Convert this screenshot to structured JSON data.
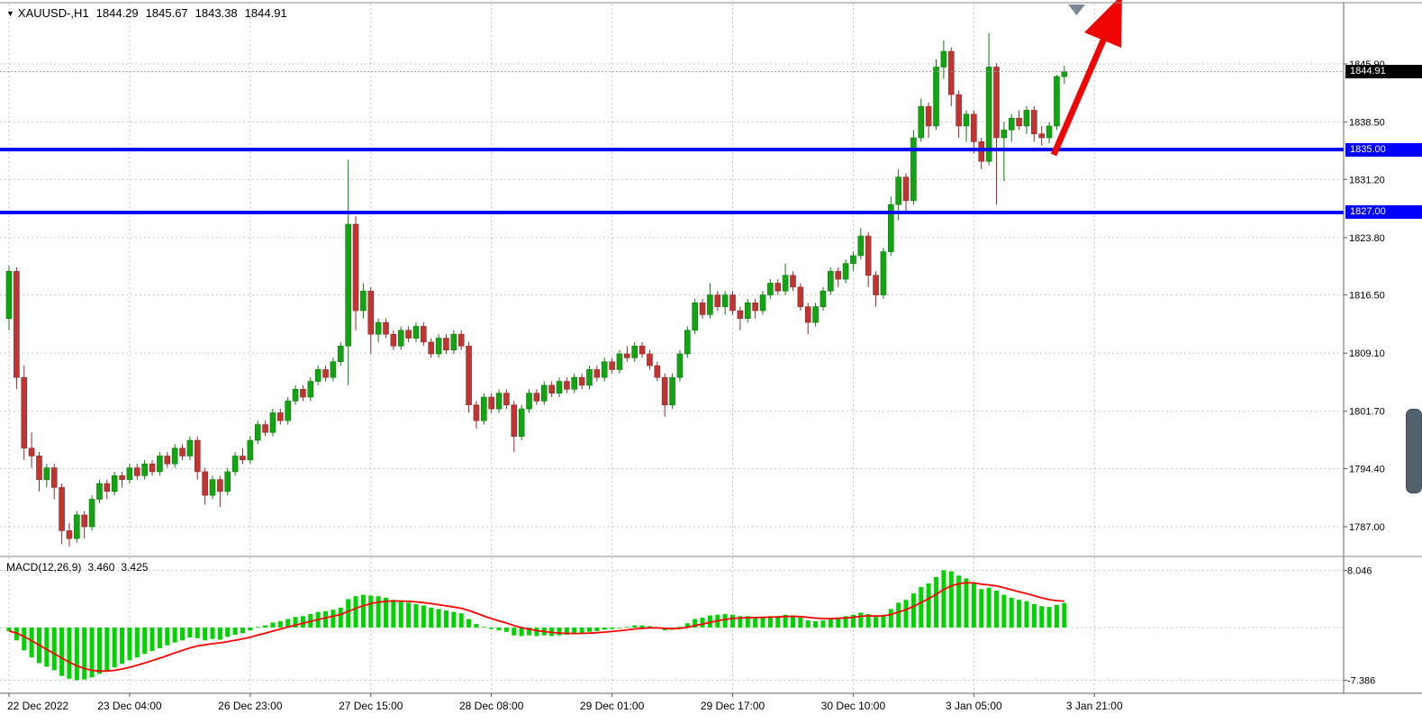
{
  "header": {
    "symbol_period": "XAUUSD-,H1",
    "open": "1844.29",
    "high": "1845.67",
    "low": "1843.38",
    "close": "1844.91"
  },
  "icons": {
    "dropdown": "▼"
  },
  "macd_display": {
    "label": "MACD(12,26,9)",
    "main": "3.460",
    "signal": "3.425"
  },
  "tags": {
    "current": "1844.91",
    "level1": "1835.00",
    "level2": "1827.00"
  },
  "colors": {
    "up": "#12A412",
    "up_wick": "#0B7A0B",
    "down": "#C13434",
    "down_wick": "#8F2B2B",
    "grid": "#C6C6C6",
    "level": "#0000FF",
    "macd_hist": "#00D300",
    "macd_signal": "#FF0000",
    "arrow": "#F00505",
    "tag_current_bg": "#000000",
    "tag_level_bg": "#0000FF",
    "marker": "#7B8794"
  },
  "chart_data": {
    "type": "candlestick",
    "symbol": "XAUUSD-",
    "timeframe": "H1",
    "current_ohlc": {
      "open": 1844.29,
      "high": 1845.67,
      "low": 1843.38,
      "close": 1844.91
    },
    "price_axis": {
      "ticks": [
        1845.9,
        1838.5,
        1831.2,
        1823.8,
        1816.5,
        1809.1,
        1801.7,
        1794.4,
        1787.0
      ],
      "tick_labels": [
        "1845.90",
        "1838.50",
        "1831.20",
        "1823.80",
        "1816.50",
        "1809.10",
        "1801.70",
        "1794.40",
        "1787.00"
      ]
    },
    "levels": [
      1835.0,
      1827.0
    ],
    "time_axis": {
      "labels": [
        "22 Dec 2022",
        "23 Dec 04:00",
        "26 Dec 23:00",
        "27 Dec 15:00",
        "28 Dec 08:00",
        "29 Dec 01:00",
        "29 Dec 17:00",
        "30 Dec 10:00",
        "3 Jan 05:00",
        "3 Jan 21:00"
      ],
      "bar_indices": [
        0,
        16,
        32,
        48,
        64,
        80,
        96,
        112,
        128,
        144
      ]
    },
    "ohlc": [
      [
        1813.5,
        1820.2,
        1812.0,
        1819.5
      ],
      [
        1819.5,
        1820.0,
        1804.5,
        1806.0
      ],
      [
        1806.0,
        1807.5,
        1795.5,
        1797.0
      ],
      [
        1797.0,
        1799.0,
        1794.5,
        1796.0
      ],
      [
        1796.0,
        1796.5,
        1791.5,
        1793.0
      ],
      [
        1793.0,
        1795.0,
        1792.0,
        1794.5
      ],
      [
        1794.5,
        1795.0,
        1790.5,
        1792.0
      ],
      [
        1792.0,
        1792.5,
        1784.8,
        1786.5
      ],
      [
        1786.5,
        1787.5,
        1784.5,
        1785.5
      ],
      [
        1785.5,
        1789.0,
        1785.0,
        1788.5
      ],
      [
        1788.5,
        1789.0,
        1785.5,
        1787.0
      ],
      [
        1787.0,
        1791.0,
        1786.5,
        1790.5
      ],
      [
        1790.5,
        1793.0,
        1790.0,
        1792.5
      ],
      [
        1792.5,
        1793.0,
        1790.5,
        1791.5
      ],
      [
        1791.5,
        1794.0,
        1791.0,
        1793.5
      ],
      [
        1793.5,
        1794.0,
        1792.0,
        1793.0
      ],
      [
        1793.0,
        1795.0,
        1792.5,
        1794.5
      ],
      [
        1794.5,
        1795.0,
        1793.0,
        1793.5
      ],
      [
        1793.5,
        1795.5,
        1793.0,
        1795.0
      ],
      [
        1795.0,
        1795.5,
        1793.5,
        1794.0
      ],
      [
        1794.0,
        1796.5,
        1793.5,
        1796.0
      ],
      [
        1796.0,
        1796.5,
        1794.5,
        1795.0
      ],
      [
        1795.0,
        1797.5,
        1794.5,
        1797.0
      ],
      [
        1797.0,
        1797.5,
        1795.5,
        1796.0
      ],
      [
        1796.0,
        1798.5,
        1795.5,
        1798.0
      ],
      [
        1798.0,
        1798.5,
        1793.0,
        1794.0
      ],
      [
        1794.0,
        1794.5,
        1789.8,
        1791.0
      ],
      [
        1791.0,
        1793.5,
        1790.5,
        1793.0
      ],
      [
        1793.0,
        1793.5,
        1789.5,
        1791.5
      ],
      [
        1791.5,
        1794.5,
        1791.0,
        1794.0
      ],
      [
        1794.0,
        1796.5,
        1793.5,
        1796.0
      ],
      [
        1796.0,
        1797.0,
        1795.0,
        1795.5
      ],
      [
        1795.5,
        1798.5,
        1795.0,
        1798.0
      ],
      [
        1798.0,
        1800.5,
        1797.5,
        1800.0
      ],
      [
        1800.0,
        1800.5,
        1798.5,
        1799.0
      ],
      [
        1799.0,
        1802.0,
        1798.5,
        1801.5
      ],
      [
        1801.5,
        1802.0,
        1800.0,
        1800.5
      ],
      [
        1800.5,
        1803.5,
        1800.0,
        1803.0
      ],
      [
        1803.0,
        1805.0,
        1802.5,
        1804.5
      ],
      [
        1804.5,
        1805.0,
        1803.0,
        1803.5
      ],
      [
        1803.5,
        1806.0,
        1803.0,
        1805.5
      ],
      [
        1805.5,
        1807.5,
        1805.0,
        1807.0
      ],
      [
        1807.0,
        1807.5,
        1805.5,
        1806.0
      ],
      [
        1806.0,
        1808.5,
        1805.5,
        1808.0
      ],
      [
        1808.0,
        1810.5,
        1807.5,
        1810.0
      ],
      [
        1810.0,
        1833.7,
        1805.0,
        1825.5
      ],
      [
        1825.5,
        1826.5,
        1812.0,
        1814.5
      ],
      [
        1814.5,
        1818.0,
        1813.5,
        1817.0
      ],
      [
        1817.0,
        1817.5,
        1809.0,
        1811.5
      ],
      [
        1811.5,
        1813.5,
        1810.5,
        1813.0
      ],
      [
        1813.0,
        1813.5,
        1811.0,
        1811.5
      ],
      [
        1811.5,
        1812.0,
        1809.5,
        1810.0
      ],
      [
        1810.0,
        1812.5,
        1809.5,
        1812.0
      ],
      [
        1812.0,
        1812.5,
        1810.5,
        1811.0
      ],
      [
        1811.0,
        1813.0,
        1810.5,
        1812.5
      ],
      [
        1812.5,
        1813.0,
        1810.0,
        1810.5
      ],
      [
        1810.5,
        1811.0,
        1808.5,
        1809.0
      ],
      [
        1809.0,
        1811.5,
        1808.5,
        1811.0
      ],
      [
        1811.0,
        1811.5,
        1809.0,
        1809.5
      ],
      [
        1809.5,
        1812.0,
        1809.0,
        1811.5
      ],
      [
        1811.5,
        1812.0,
        1809.5,
        1810.0
      ],
      [
        1810.0,
        1810.5,
        1801.5,
        1802.5
      ],
      [
        1802.5,
        1803.0,
        1799.5,
        1800.5
      ],
      [
        1800.5,
        1804.0,
        1800.0,
        1803.5
      ],
      [
        1803.5,
        1804.0,
        1801.5,
        1802.0
      ],
      [
        1802.0,
        1804.5,
        1801.5,
        1804.0
      ],
      [
        1804.0,
        1804.5,
        1802.0,
        1802.5
      ],
      [
        1802.5,
        1803.0,
        1796.5,
        1798.5
      ],
      [
        1798.5,
        1802.5,
        1798.0,
        1802.0
      ],
      [
        1802.0,
        1804.5,
        1801.5,
        1804.0
      ],
      [
        1804.0,
        1804.5,
        1802.5,
        1803.0
      ],
      [
        1803.0,
        1805.5,
        1802.5,
        1805.0
      ],
      [
        1805.0,
        1805.5,
        1803.5,
        1804.0
      ],
      [
        1804.0,
        1806.0,
        1803.5,
        1805.5
      ],
      [
        1805.5,
        1806.0,
        1804.0,
        1804.5
      ],
      [
        1804.5,
        1806.5,
        1804.0,
        1806.0
      ],
      [
        1806.0,
        1806.5,
        1804.5,
        1805.0
      ],
      [
        1805.0,
        1807.5,
        1804.5,
        1807.0
      ],
      [
        1807.0,
        1807.5,
        1805.5,
        1806.0
      ],
      [
        1806.0,
        1808.5,
        1805.5,
        1808.0
      ],
      [
        1808.0,
        1808.5,
        1806.5,
        1807.0
      ],
      [
        1807.0,
        1809.5,
        1806.5,
        1809.0
      ],
      [
        1809.0,
        1810.0,
        1808.0,
        1808.5
      ],
      [
        1808.5,
        1810.5,
        1808.0,
        1810.0
      ],
      [
        1810.0,
        1810.5,
        1808.5,
        1809.0
      ],
      [
        1809.0,
        1809.5,
        1807.0,
        1807.5
      ],
      [
        1807.5,
        1808.0,
        1805.5,
        1806.0
      ],
      [
        1806.0,
        1806.5,
        1801.0,
        1802.5
      ],
      [
        1802.5,
        1806.5,
        1802.0,
        1806.0
      ],
      [
        1806.0,
        1809.5,
        1805.5,
        1809.0
      ],
      [
        1809.0,
        1812.5,
        1808.5,
        1812.0
      ],
      [
        1812.0,
        1816.0,
        1811.5,
        1815.5
      ],
      [
        1815.5,
        1816.0,
        1813.5,
        1814.0
      ],
      [
        1814.0,
        1818.0,
        1813.5,
        1816.5
      ],
      [
        1816.5,
        1817.0,
        1814.5,
        1815.0
      ],
      [
        1815.0,
        1817.0,
        1814.0,
        1816.5
      ],
      [
        1816.5,
        1817.0,
        1814.0,
        1814.5
      ],
      [
        1814.5,
        1815.0,
        1812.0,
        1813.5
      ],
      [
        1813.5,
        1816.0,
        1813.0,
        1815.5
      ],
      [
        1815.5,
        1816.0,
        1813.5,
        1814.5
      ],
      [
        1814.5,
        1817.0,
        1814.0,
        1816.5
      ],
      [
        1816.5,
        1818.5,
        1816.0,
        1818.0
      ],
      [
        1818.0,
        1818.5,
        1816.5,
        1817.0
      ],
      [
        1817.0,
        1820.5,
        1816.5,
        1819.0
      ],
      [
        1819.0,
        1819.5,
        1817.0,
        1817.5
      ],
      [
        1817.5,
        1818.0,
        1814.5,
        1815.0
      ],
      [
        1815.0,
        1815.5,
        1811.5,
        1813.0
      ],
      [
        1813.0,
        1815.5,
        1812.5,
        1815.0
      ],
      [
        1815.0,
        1817.5,
        1814.5,
        1817.0
      ],
      [
        1817.0,
        1820.0,
        1816.5,
        1819.5
      ],
      [
        1819.5,
        1820.0,
        1817.5,
        1818.5
      ],
      [
        1818.5,
        1821.0,
        1818.0,
        1820.5
      ],
      [
        1820.5,
        1822.0,
        1819.5,
        1821.5
      ],
      [
        1821.5,
        1825.0,
        1821.0,
        1824.0
      ],
      [
        1824.0,
        1824.5,
        1817.5,
        1819.0
      ],
      [
        1819.0,
        1819.5,
        1815.0,
        1816.5
      ],
      [
        1816.5,
        1822.5,
        1816.0,
        1822.0
      ],
      [
        1822.0,
        1829.0,
        1821.5,
        1828.0
      ],
      [
        1828.0,
        1832.5,
        1826.0,
        1831.5
      ],
      [
        1831.5,
        1832.0,
        1827.0,
        1828.5
      ],
      [
        1828.5,
        1837.5,
        1828.0,
        1836.5
      ],
      [
        1836.5,
        1841.5,
        1836.0,
        1840.5
      ],
      [
        1840.5,
        1841.0,
        1836.5,
        1838.0
      ],
      [
        1838.0,
        1846.5,
        1837.5,
        1845.5
      ],
      [
        1845.5,
        1848.9,
        1844.0,
        1847.5
      ],
      [
        1847.5,
        1848.0,
        1840.5,
        1842.0
      ],
      [
        1842.0,
        1842.5,
        1836.5,
        1838.0
      ],
      [
        1838.0,
        1840.0,
        1836.0,
        1839.5
      ],
      [
        1839.5,
        1840.0,
        1834.5,
        1836.0
      ],
      [
        1836.0,
        1836.5,
        1832.5,
        1833.5
      ],
      [
        1833.5,
        1849.8,
        1833.0,
        1845.5
      ],
      [
        1845.5,
        1846.0,
        1828.0,
        1836.5
      ],
      [
        1836.5,
        1838.5,
        1831.0,
        1837.5
      ],
      [
        1837.5,
        1839.5,
        1836.0,
        1839.0
      ],
      [
        1839.0,
        1840.0,
        1837.5,
        1838.0
      ],
      [
        1838.0,
        1840.5,
        1837.0,
        1840.0
      ],
      [
        1840.0,
        1840.5,
        1836.0,
        1837.0
      ],
      [
        1837.0,
        1838.0,
        1835.5,
        1836.5
      ],
      [
        1836.5,
        1838.5,
        1835.8,
        1838.0
      ],
      [
        1838.0,
        1844.5,
        1837.5,
        1844.3
      ],
      [
        1844.29,
        1845.67,
        1843.38,
        1844.91
      ]
    ],
    "macd": {
      "label": "MACD(12,26,9)",
      "main": 3.46,
      "signal": 3.425,
      "scale": {
        "max": 8.046,
        "min": -7.386,
        "max_label": "8.046",
        "min_label": "-7.386"
      },
      "histogram": [
        -0.5,
        -1.8,
        -3.2,
        -4.2,
        -5.0,
        -5.5,
        -6.0,
        -6.8,
        -7.2,
        -7.39,
        -7.3,
        -7.0,
        -6.5,
        -6.1,
        -5.6,
        -5.1,
        -4.6,
        -4.2,
        -3.7,
        -3.3,
        -2.9,
        -2.5,
        -2.1,
        -1.8,
        -1.4,
        -1.5,
        -1.8,
        -1.6,
        -1.7,
        -1.3,
        -1.0,
        -0.8,
        -0.4,
        0.1,
        0.3,
        0.7,
        0.9,
        1.2,
        1.5,
        1.6,
        1.9,
        2.2,
        2.3,
        2.5,
        2.8,
        4.0,
        4.4,
        4.6,
        4.5,
        4.4,
        4.2,
        3.9,
        3.7,
        3.5,
        3.3,
        3.1,
        2.8,
        2.6,
        2.4,
        2.2,
        2.0,
        1.2,
        0.5,
        0.1,
        -0.2,
        -0.4,
        -0.6,
        -1.1,
        -1.2,
        -1.1,
        -1.2,
        -1.1,
        -1.2,
        -1.1,
        -1.0,
        -0.9,
        -0.8,
        -0.6,
        -0.5,
        -0.3,
        -0.2,
        0.0,
        0.1,
        0.3,
        0.3,
        0.2,
        0.0,
        -0.4,
        -0.3,
        0.1,
        0.6,
        1.2,
        1.4,
        1.7,
        1.8,
        1.9,
        1.8,
        1.6,
        1.6,
        1.5,
        1.5,
        1.6,
        1.6,
        1.8,
        1.7,
        1.4,
        1.0,
        0.9,
        1.0,
        1.3,
        1.4,
        1.6,
        1.8,
        2.1,
        1.9,
        1.5,
        1.8,
        2.6,
        3.5,
        3.9,
        4.8,
        5.7,
        6.2,
        7.1,
        8.05,
        7.9,
        7.3,
        6.9,
        6.2,
        5.4,
        5.6,
        5.2,
        4.6,
        4.2,
        3.9,
        3.7,
        3.3,
        3.0,
        2.9,
        3.2,
        3.46
      ]
    }
  }
}
